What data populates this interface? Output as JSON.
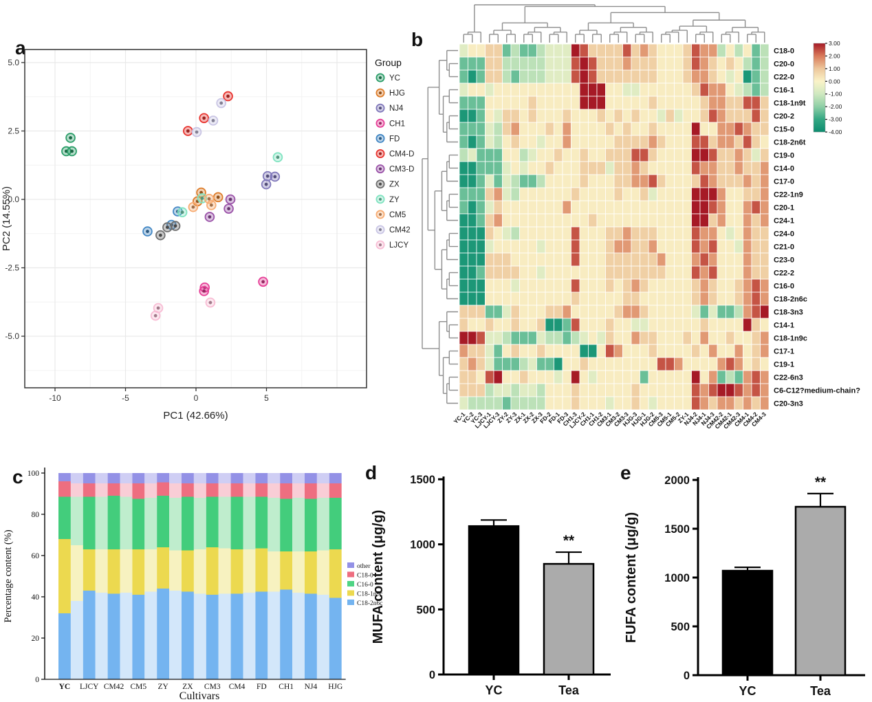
{
  "panels": {
    "a": "a",
    "b": "b",
    "c": "c",
    "d": "d",
    "e": "e"
  },
  "chart_data": [
    {
      "type": "scatter",
      "panel": "a",
      "xlabel": "PC1 (42.66%)",
      "ylabel": "PC2 (14.55%)",
      "legend_title": "Group",
      "x_ticks": [
        "-10",
        "-5",
        "0",
        "5"
      ],
      "x_tick_values": [
        -10,
        -5,
        0,
        5
      ],
      "y_ticks": [
        "5.0",
        "2.5",
        "0.0",
        "-2.5",
        "-5.0"
      ],
      "y_tick_values": [
        5.0,
        2.5,
        0.0,
        -2.5,
        -5.0
      ],
      "xlim": [
        -12.1,
        12.1
      ],
      "ylim": [
        -6.9,
        5.5
      ],
      "grid": true,
      "legend_position": "right",
      "groups": [
        {
          "name": "YC",
          "color": "#2a9d68",
          "points": [
            [
              -8.9,
              2.25
            ],
            [
              -9.2,
              1.76
            ],
            [
              -8.8,
              1.76
            ]
          ]
        },
        {
          "name": "HJG",
          "color": "#dd7b28",
          "points": [
            [
              0.37,
              0.25
            ],
            [
              0.11,
              -0.07
            ],
            [
              1.57,
              0.08
            ]
          ]
        },
        {
          "name": "NJ4",
          "color": "#8078ba",
          "points": [
            [
              5.08,
              0.85
            ],
            [
              5.6,
              0.83
            ],
            [
              4.98,
              0.55
            ]
          ]
        },
        {
          "name": "CH1",
          "color": "#e63d96",
          "points": [
            [
              0.62,
              -3.22
            ],
            [
              0.57,
              -3.35
            ],
            [
              4.76,
              -3.01
            ]
          ]
        },
        {
          "name": "FD",
          "color": "#4287c4",
          "points": [
            [
              -1.3,
              -0.44
            ],
            [
              -1.74,
              -0.93
            ],
            [
              -3.44,
              -1.17
            ]
          ]
        },
        {
          "name": "CM4-D",
          "color": "#e8332e",
          "points": [
            [
              2.27,
              3.77
            ],
            [
              0.57,
              2.97
            ],
            [
              -0.57,
              2.5
            ]
          ]
        },
        {
          "name": "CM3-D",
          "color": "#9a52a8",
          "points": [
            [
              2.44,
              0.0
            ],
            [
              2.32,
              -0.34
            ],
            [
              0.97,
              -0.64
            ]
          ]
        },
        {
          "name": "ZX",
          "color": "#6e6e6e",
          "points": [
            [
              -2.03,
              -1.02
            ],
            [
              -1.46,
              -0.97
            ],
            [
              -2.52,
              -1.31
            ]
          ]
        },
        {
          "name": "ZY",
          "color": "#7fe3c0",
          "points": [
            [
              5.8,
              1.54
            ],
            [
              0.44,
              0.04
            ],
            [
              -0.97,
              -0.47
            ]
          ]
        },
        {
          "name": "CM5",
          "color": "#f7ab71",
          "points": [
            [
              0.93,
              0.02
            ],
            [
              1.09,
              -0.21
            ],
            [
              -0.2,
              -0.28
            ]
          ]
        },
        {
          "name": "CM42",
          "color": "#c9c5e4",
          "points": [
            [
              1.79,
              3.52
            ],
            [
              1.22,
              2.88
            ],
            [
              0.05,
              2.46
            ]
          ]
        },
        {
          "name": "LJCY",
          "color": "#f8bcd4",
          "points": [
            [
              1.02,
              -3.77
            ],
            [
              -2.68,
              -3.97
            ],
            [
              -2.87,
              -4.25
            ]
          ]
        }
      ]
    },
    {
      "type": "heatmap",
      "panel": "b",
      "row_labels": [
        "C18-0",
        "C20-0",
        "C22-0",
        "C16-1",
        "C18-1n9t",
        "C20-2",
        "C15-0",
        "C18-2n6t",
        "C19-0",
        "C14-0",
        "C17-0",
        "C22-1n9",
        "C20-1",
        "C24-1",
        "C24-0",
        "C21-0",
        "C23-0",
        "C22-2",
        "C16-0",
        "C18-2n6c",
        "C18-3n3",
        "C14-1",
        "C18-1n9c",
        "C17-1",
        "C19-1",
        "C22-6n3",
        "C6-C12?medium-chain?",
        "C20-3n3"
      ],
      "col_labels": [
        "YC-1",
        "YC-2",
        "YC-3",
        "LJCY-1",
        "LJCY-3",
        "ZY-2",
        "ZY-3",
        "ZX-1",
        "ZX-2",
        "ZX-3",
        "FD-2",
        "FD-1",
        "FD-3",
        "CH1-3",
        "LJCY-2",
        "CH1-1",
        "CH1-2",
        "CM3-1",
        "CM3-2",
        "CM3-3",
        "HJG-3",
        "HJG-1",
        "HJG-2",
        "CM5-3",
        "CM5-1",
        "CM5-2",
        "ZY-1",
        "NJ4-2",
        "NJ4-1",
        "NJ4-3",
        "CM42-2",
        "CM42-1",
        "CM42-3",
        "CM4-1",
        "CM4-2",
        "CM4-3"
      ],
      "colorbar_ticks": [
        "3.00",
        "2.00",
        "1.00",
        "0.00",
        "-1.00",
        "-2.00",
        "-3.00",
        "-4.00"
      ],
      "colorbar_range": [
        3,
        -4
      ],
      "color_stops": [
        [
          -4,
          "#0d8c6f"
        ],
        [
          -3,
          "#33a783"
        ],
        [
          -2,
          "#8ecfa6"
        ],
        [
          -1,
          "#cfe8c0"
        ],
        [
          0,
          "#faf3c8"
        ],
        [
          1,
          "#edc79c"
        ],
        [
          2,
          "#d97a5a"
        ],
        [
          3,
          "#a61a26"
        ]
      ],
      "code_values": {
        "G": -3.6,
        "g": -2.4,
        "e": -1.3,
        "v": -0.6,
        "y": 0.15,
        "o": 0.8,
        "O": 1.6,
        "r": 2.4,
        "R": 3.0
      },
      "rows": [
        [
          "vyyoog",
          "eggevv",
          "vRrooo",
          "oroOoy",
          "yyorOO",
          "eyeyge"
        ],
        [
          "gggooe",
          "eeeevv",
          "vrRroo",
          "oOoooy",
          "yyorOo",
          "yoyege"
        ],
        [
          "gGgooe",
          "geeevv",
          "vrRroo",
          "oooooy",
          "yyoOOo",
          "yvyGge"
        ],
        [
          "vyyvyy",
          "yyyyyy",
          "yyRRRy",
          "yvvyyy",
          "yyyorO",
          "Oyvege"
        ],
        [
          "gggyyy",
          "yyoyyy",
          "yyRRRy",
          "yyyyoy",
          "yyyyoO",
          "Ooorro"
        ],
        [
          "GGgyvo",
          "oyoyyy",
          "oyyyoy",
          "oyoyyv",
          "ovyyor",
          "Ooooro"
        ],
        [
          "gggveo",
          "Oyyyoy",
          "Oyyyyo",
          "yoyyoy",
          "yyyRyy",
          "OOrOoo"
        ],
        [
          "gGgvey",
          "oyyvyy",
          "Oyyyyy",
          "ooooOo",
          "yyyrro",
          "OOoroy"
        ],
        [
          "evgggy",
          "yevyyo",
          "yyoyyo",
          "oorroy",
          "yyyRRr",
          "ooOovo"
        ],
        [
          "GGgggv",
          "yvyyoy",
          "yyooov",
          "ooOoyy",
          "yyyrOO",
          "ooOooO"
        ],
        [
          "GGgvgv",
          "eggeyy",
          "yyoyyy",
          "ooOOro",
          "yyyorO",
          "oooOoO"
        ],
        [
          "gggoOv",
          "eyyyyy",
          "yoyyyy",
          "oyyovy",
          "yyyRRR",
          "OyyooO"
        ],
        [
          "gGgvoy",
          "yyyyyy",
          "Oyyyyy",
          "yyyyyy",
          "yyyRRr",
          "OyyOrO"
        ],
        [
          "GGgoOy",
          "yyyyyy",
          "yyyoyy",
          "yyyyyy",
          "yyyRRo",
          "OyyOoO"
        ],
        [
          "GGGoyv",
          "eyyyyy",
          "yryyyo",
          "oOoooy",
          "yyyrOO",
          "yvyOoo"
        ],
        [
          "GGGvyy",
          "yyyvyy",
          "yryyyo",
          "OOooOy",
          "yyyrOr",
          "yyvOoo"
        ],
        [
          "GGGooo",
          "yyyyyy",
          "yryyyo",
          "oooooO",
          "yyyOrO",
          "yyyOoo"
        ],
        [
          "GGgooo",
          "oyyvyy",
          "yyyyyo",
          "oooooo",
          "yyyrOr",
          "yyyOoo"
        ],
        [
          "GGGyyy",
          "vyyyyy",
          "yryyyo",
          "yoOoyy",
          "yyyoOo",
          "yyoOrO"
        ],
        [
          "GGGyyy",
          "yyyyyy",
          "yoyyyy",
          "yooyyy",
          "yyyoOo",
          "yyoOrO"
        ],
        [
          "oooggv",
          "oyyyoo",
          "Oyyyyy",
          "oOOoyy",
          "yyyvgv",
          "ggeOrR"
        ],
        [
          "oyyoyy",
          "oyyoGG",
          "gryyyo",
          "yyvvyy",
          "yyyyoy",
          "yyyRoy"
        ],
        [
          "RRrvve",
          "gggvee",
          "gevyvo",
          "yyOooy",
          "yyoyOy",
          "yoyyoO"
        ],
        [
          "Ooovgy",
          "oyyoyy",
          "yyGGyr",
          "Oyyyoy",
          "yyyoyO",
          "yyOyoO"
        ],
        [
          "oOovgg",
          "gevggG",
          "yyoyyy",
          "yyyyyr",
          "rOyyyy",
          "OrOyoy"
        ],
        [
          "ooyrRy",
          "yoyyyv",
          "yRyvyy",
          "yyygyy",
          "yyyRyO",
          "gegOrO"
        ],
        [
          "oooevv",
          "evveyy",
          "yoyyyy",
          "yyoyyy",
          "yyyrOr",
          "RRrOrO"
        ],
        [
          "veeeeg",
          "eeeeyy",
          "yoyyyv",
          "yyoyvy",
          "yyyrOo",
          "OOoOoO"
        ]
      ],
      "col_tree": [
        3,
        [
          [
            [
              2,
              2
            ],
            [
              3,
              3
            ]
          ],
          [
            [
              [
                2,
                2
              ],
              [
                3,
                3
              ]
            ],
            [
              [
                [
                  3,
                  1
                ],
                3
              ],
              [
                3,
                3
              ]
            ]
          ]
        ]
      ],
      "row_tree": [
        [
          [
            [
              1,
              2
            ],
            [
              2,
              3
            ]
          ],
          [
            [
              3,
              3
            ],
            [
              3,
              3
            ]
          ]
        ],
        [
          [
            1,
            2
          ],
          [
            2,
            3
          ]
        ]
      ]
    },
    {
      "type": "bar",
      "subtype": "stacked-percent",
      "panel": "c",
      "xlabel": "Cultivars",
      "ylabel": "Percentage content (%)",
      "y_ticks": [
        0,
        20,
        40,
        60,
        80,
        100
      ],
      "ylim": [
        0,
        100
      ],
      "categories": [
        "YC",
        "LJCY",
        "CM42",
        "CM5",
        "ZY",
        "ZX",
        "CM3",
        "CM4",
        "FD",
        "CH1",
        "NJ4",
        "HJG"
      ],
      "legend": [
        "other",
        "C18-0",
        "C16-0",
        "C18-1n9c",
        "C18-2n6c"
      ],
      "legend_colors": [
        "#9391e6",
        "#ee6e80",
        "#4fd484",
        "#ecd94f",
        "#74b4f0"
      ],
      "series_order_bottom_to_top": [
        "C18-2n6c",
        "C18-1n9c",
        "C16-0",
        "C18-0",
        "other"
      ],
      "bright_colors": [
        "#74b4f0",
        "#ecd94f",
        "#43cd7c",
        "#ee6e80",
        "#9391e6"
      ],
      "pale_colors": [
        "#d3e7fa",
        "#f7f2c0",
        "#bfedcd",
        "#f9cdd6",
        "#cfcef4"
      ],
      "bars": [
        {
          "pale": false,
          "values": [
            32,
            36,
            20.5,
            7.5,
            4
          ]
        },
        {
          "pale": true,
          "values": [
            38,
            27,
            23.5,
            6.5,
            5
          ]
        },
        {
          "pale": false,
          "values": [
            43,
            20,
            25.5,
            6.5,
            5
          ]
        },
        {
          "pale": true,
          "values": [
            42,
            21,
            25.5,
            6.5,
            5
          ]
        },
        {
          "pale": false,
          "values": [
            41.5,
            21.5,
            26,
            6,
            5
          ]
        },
        {
          "pale": true,
          "values": [
            42,
            21,
            25.5,
            6.5,
            5
          ]
        },
        {
          "pale": false,
          "values": [
            41,
            22,
            24.5,
            7.5,
            5
          ]
        },
        {
          "pale": true,
          "values": [
            42.5,
            20.5,
            25,
            7,
            5
          ]
        },
        {
          "pale": false,
          "values": [
            44,
            20,
            25,
            6.5,
            4.5
          ]
        },
        {
          "pale": true,
          "values": [
            43,
            19.5,
            25.5,
            7,
            5
          ]
        },
        {
          "pale": false,
          "values": [
            42.5,
            20,
            26,
            6.5,
            5
          ]
        },
        {
          "pale": true,
          "values": [
            41.5,
            21.5,
            25,
            7,
            5
          ]
        },
        {
          "pale": false,
          "values": [
            41,
            23,
            24.5,
            6.5,
            5
          ]
        },
        {
          "pale": true,
          "values": [
            41.5,
            22,
            25,
            6.5,
            5
          ]
        },
        {
          "pale": false,
          "values": [
            41.5,
            21.5,
            25.5,
            6.5,
            5
          ]
        },
        {
          "pale": true,
          "values": [
            42,
            21,
            25.5,
            6.5,
            5
          ]
        },
        {
          "pale": false,
          "values": [
            42.5,
            21,
            25,
            6.5,
            5
          ]
        },
        {
          "pale": true,
          "values": [
            42.5,
            19.5,
            26,
            7,
            5
          ]
        },
        {
          "pale": false,
          "values": [
            43.5,
            18.5,
            25.5,
            7.5,
            5
          ]
        },
        {
          "pale": true,
          "values": [
            42,
            20,
            26,
            7,
            5
          ]
        },
        {
          "pale": false,
          "values": [
            41.5,
            20.5,
            25.5,
            7.5,
            5
          ]
        },
        {
          "pale": true,
          "values": [
            41,
            21.5,
            25.5,
            7,
            5
          ]
        },
        {
          "pale": false,
          "values": [
            39.5,
            23.5,
            25,
            7,
            5
          ]
        }
      ]
    },
    {
      "type": "bar",
      "panel": "d",
      "ylabel": "MUFA content (μg/g)",
      "categories": [
        "YC",
        "Tea"
      ],
      "values": [
        1140,
        850
      ],
      "errors": [
        47,
        90
      ],
      "significance": [
        "",
        "**"
      ],
      "y_ticks": [
        0,
        500,
        1000,
        1500
      ],
      "ylim": [
        0,
        1500
      ],
      "bar_colors": [
        "#000000",
        "#ababab"
      ]
    },
    {
      "type": "bar",
      "panel": "e",
      "ylabel": "FUFA content (μg/g)",
      "categories": [
        "YC",
        "Tea"
      ],
      "values": [
        1070,
        1725
      ],
      "errors": [
        35,
        135
      ],
      "significance": [
        "",
        "**"
      ],
      "y_ticks": [
        0,
        500,
        1000,
        1500,
        2000
      ],
      "ylim": [
        0,
        2000
      ],
      "bar_colors": [
        "#000000",
        "#ababab"
      ]
    }
  ]
}
